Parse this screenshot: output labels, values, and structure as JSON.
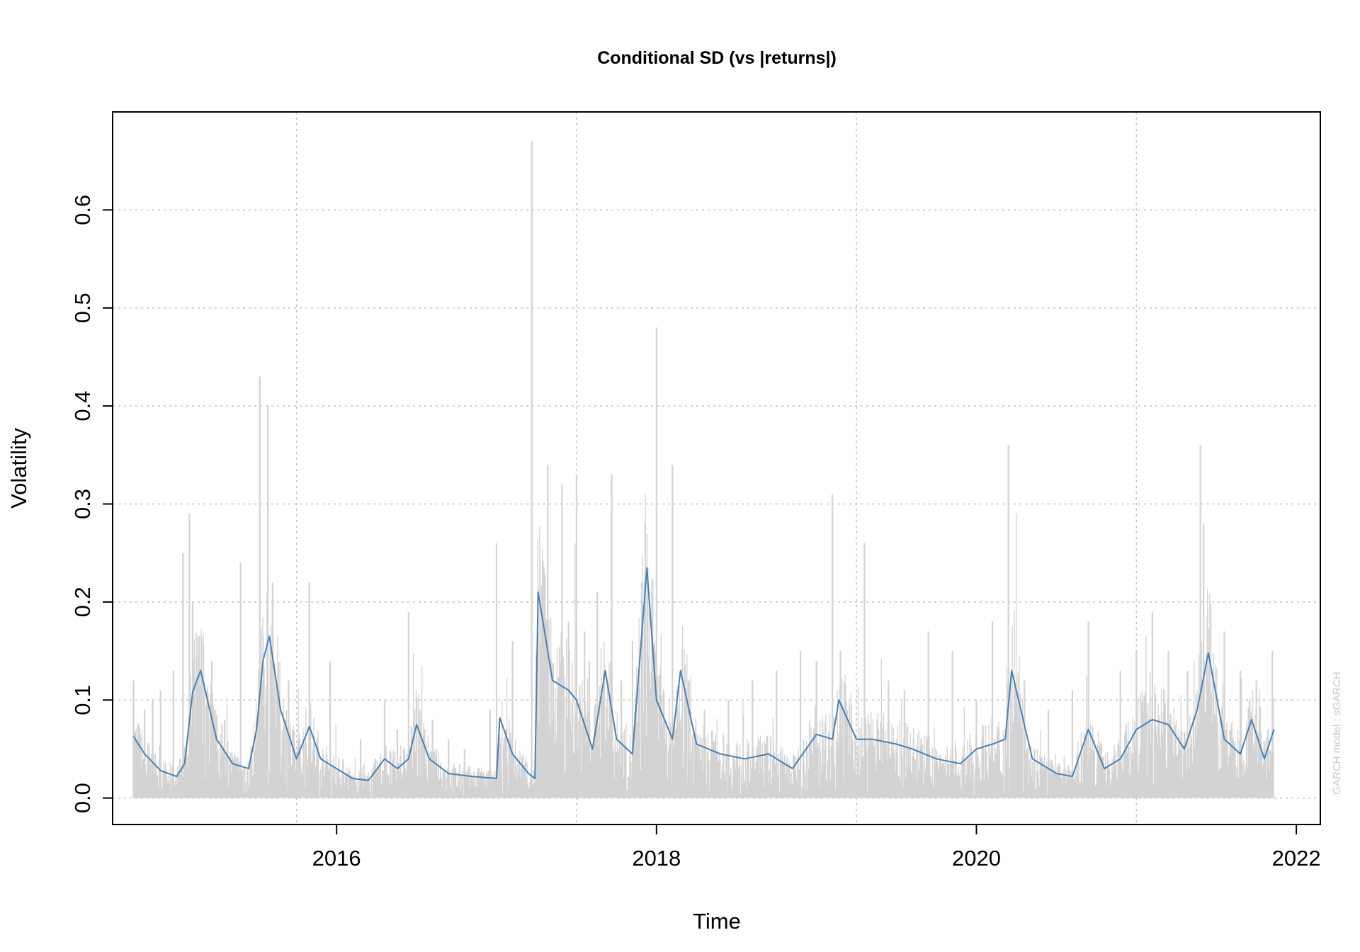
{
  "chart_data": {
    "type": "line",
    "title": "Conditional SD (vs |returns|)",
    "xlabel": "Time",
    "ylabel": "Volatility",
    "side_note": "GARCH model : sGARCH",
    "x_ticks": [
      2016,
      2018,
      2020,
      2022
    ],
    "y_ticks": [
      "0.0",
      "0.1",
      "0.2",
      "0.3",
      "0.4",
      "0.5",
      "0.6"
    ],
    "xlim": [
      2014.6,
      2022.15
    ],
    "ylim": [
      -0.027,
      0.7
    ],
    "grid": true,
    "legend": "none",
    "colors": {
      "abs_returns": "#d3d3d3",
      "cond_sd": "#4682b4",
      "grid": "#c0c0c0",
      "frame": "#000000"
    },
    "series": [
      {
        "name": "|returns|",
        "style": "spike",
        "x": [
          2014.73,
          2014.8,
          2014.85,
          2014.9,
          2014.98,
          2015.04,
          2015.08,
          2015.1,
          2015.15,
          2015.22,
          2015.3,
          2015.4,
          2015.52,
          2015.57,
          2015.6,
          2015.64,
          2015.7,
          2015.76,
          2015.83,
          2015.88,
          2015.96,
          2016.04,
          2016.15,
          2016.3,
          2016.38,
          2016.45,
          2016.52,
          2016.55,
          2016.6,
          2016.7,
          2016.8,
          2016.96,
          2017.0,
          2017.1,
          2017.22,
          2017.32,
          2017.41,
          2017.45,
          2017.5,
          2017.55,
          2017.58,
          2017.63,
          2017.72,
          2017.78,
          2017.85,
          2017.93,
          2018.0,
          2018.1,
          2018.2,
          2018.3,
          2018.45,
          2018.6,
          2018.75,
          2018.9,
          2019.0,
          2019.1,
          2019.15,
          2019.3,
          2019.45,
          2019.55,
          2019.7,
          2019.85,
          2020.0,
          2020.1,
          2020.2,
          2020.3,
          2020.45,
          2020.6,
          2020.7,
          2020.9,
          2021.0,
          2021.1,
          2021.2,
          2021.32,
          2021.4,
          2021.42,
          2021.55,
          2021.65,
          2021.75,
          2021.85
        ],
        "values": [
          0.12,
          0.09,
          0.1,
          0.11,
          0.13,
          0.25,
          0.29,
          0.2,
          0.06,
          0.14,
          0.08,
          0.24,
          0.43,
          0.4,
          0.22,
          0.11,
          0.12,
          0.06,
          0.22,
          0.05,
          0.14,
          0.04,
          0.06,
          0.1,
          0.07,
          0.19,
          0.09,
          0.07,
          0.08,
          0.06,
          0.05,
          0.09,
          0.26,
          0.16,
          0.67,
          0.34,
          0.32,
          0.18,
          0.33,
          0.17,
          0.14,
          0.21,
          0.33,
          0.12,
          0.16,
          0.28,
          0.48,
          0.34,
          0.12,
          0.09,
          0.1,
          0.12,
          0.13,
          0.15,
          0.14,
          0.31,
          0.15,
          0.26,
          0.12,
          0.11,
          0.17,
          0.15,
          0.1,
          0.18,
          0.36,
          0.12,
          0.09,
          0.11,
          0.18,
          0.13,
          0.15,
          0.19,
          0.15,
          0.13,
          0.36,
          0.28,
          0.17,
          0.13,
          0.12,
          0.15
        ]
      },
      {
        "name": "Conditional SD",
        "style": "line",
        "x": [
          2014.73,
          2014.8,
          2014.9,
          2015.0,
          2015.05,
          2015.1,
          2015.15,
          2015.25,
          2015.35,
          2015.45,
          2015.5,
          2015.54,
          2015.58,
          2015.65,
          2015.75,
          2015.83,
          2015.9,
          2016.0,
          2016.1,
          2016.2,
          2016.3,
          2016.38,
          2016.45,
          2016.5,
          2016.58,
          2016.7,
          2016.85,
          2017.0,
          2017.02,
          2017.1,
          2017.2,
          2017.24,
          2017.26,
          2017.35,
          2017.45,
          2017.5,
          2017.6,
          2017.68,
          2017.75,
          2017.85,
          2017.94,
          2018.0,
          2018.1,
          2018.15,
          2018.25,
          2018.4,
          2018.55,
          2018.7,
          2018.85,
          2019.0,
          2019.1,
          2019.14,
          2019.25,
          2019.35,
          2019.5,
          2019.6,
          2019.75,
          2019.9,
          2020.0,
          2020.1,
          2020.18,
          2020.22,
          2020.35,
          2020.5,
          2020.6,
          2020.7,
          2020.8,
          2020.9,
          2021.0,
          2021.1,
          2021.2,
          2021.3,
          2021.38,
          2021.45,
          2021.55,
          2021.65,
          2021.72,
          2021.8,
          2021.86
        ],
        "values": [
          0.063,
          0.045,
          0.028,
          0.022,
          0.035,
          0.108,
          0.13,
          0.06,
          0.035,
          0.03,
          0.07,
          0.14,
          0.165,
          0.09,
          0.04,
          0.073,
          0.04,
          0.03,
          0.02,
          0.018,
          0.04,
          0.03,
          0.04,
          0.075,
          0.04,
          0.025,
          0.022,
          0.02,
          0.082,
          0.045,
          0.025,
          0.02,
          0.21,
          0.12,
          0.11,
          0.1,
          0.05,
          0.13,
          0.06,
          0.045,
          0.235,
          0.1,
          0.06,
          0.13,
          0.055,
          0.045,
          0.04,
          0.045,
          0.03,
          0.065,
          0.06,
          0.1,
          0.06,
          0.06,
          0.055,
          0.05,
          0.04,
          0.035,
          0.05,
          0.055,
          0.06,
          0.13,
          0.04,
          0.025,
          0.022,
          0.07,
          0.03,
          0.04,
          0.07,
          0.08,
          0.075,
          0.05,
          0.09,
          0.148,
          0.06,
          0.045,
          0.08,
          0.04,
          0.07
        ]
      }
    ]
  }
}
